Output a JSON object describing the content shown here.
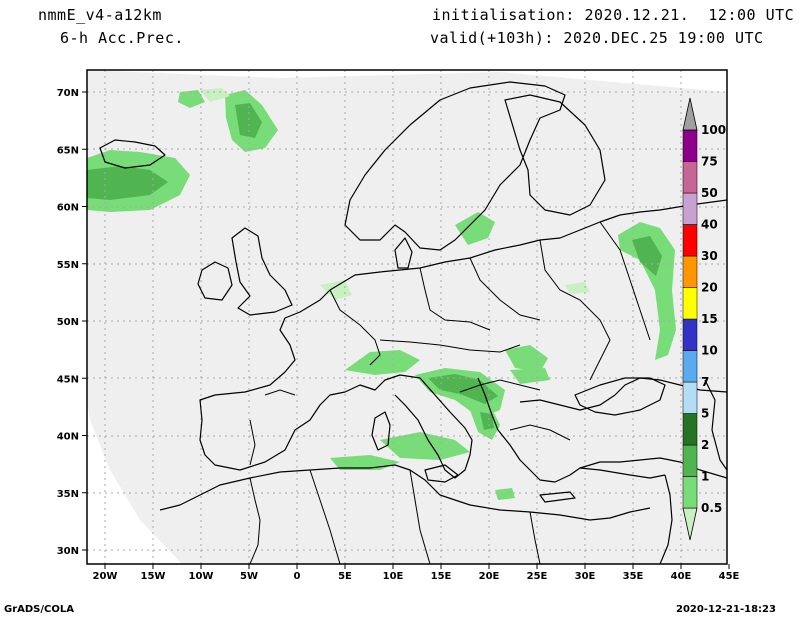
{
  "header": {
    "model": "nmmE_v4-a12km",
    "variable": "6-h Acc.Prec.",
    "init": "initialisation: 2020.12.21.  12:00 UTC",
    "valid": "valid(+103h): 2020.DEC.25 19:00 UTC"
  },
  "axes": {
    "lon_ticks": [
      "20W",
      "15W",
      "10W",
      "5W",
      "0",
      "5E",
      "10E",
      "15E",
      "20E",
      "25E",
      "30E",
      "35E",
      "40E",
      "45E"
    ],
    "lat_ticks": [
      "70N",
      "65N",
      "60N",
      "55N",
      "50N",
      "45N",
      "40N",
      "35N",
      "30N"
    ]
  },
  "colorbar": {
    "levels": [
      "0.5",
      "1",
      "2",
      "5",
      "7",
      "10",
      "15",
      "20",
      "30",
      "40",
      "50",
      "75",
      "100"
    ],
    "colors": [
      "#c8f0c0",
      "#78dc78",
      "#50b450",
      "#267326",
      "#b4dcf5",
      "#5aaaf0",
      "#3232c8",
      "#ffff00",
      "#ff9600",
      "#ff0000",
      "#c8a0d2",
      "#c86496",
      "#8c008c",
      "#a0a0a0"
    ]
  },
  "footer": {
    "left": "GrADS/COLA",
    "right": "2020-12-21-18:23"
  }
}
